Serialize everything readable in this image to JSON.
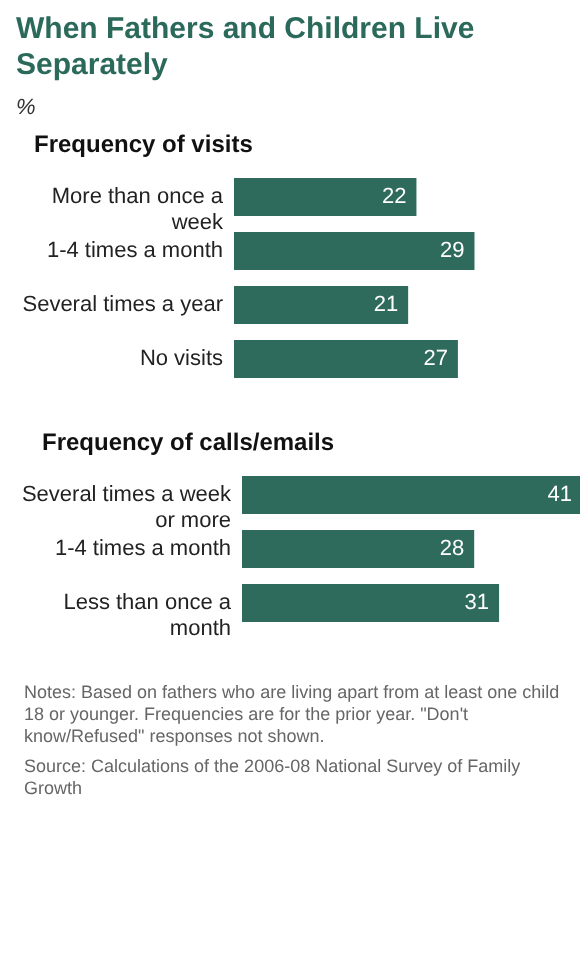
{
  "chart_data": [
    {
      "type": "other",
      "title": "When Fathers and Children Live Separately",
      "subtitle": "%"
    },
    {
      "type": "bar",
      "orientation": "horizontal",
      "title": "Frequency of visits",
      "categories": [
        "More than once a week",
        "1-4 times a month",
        "Several times a year",
        "No visits"
      ],
      "values": [
        22,
        29,
        21,
        27
      ],
      "color": "#2f6b5c",
      "data_labels": true
    },
    {
      "type": "bar",
      "orientation": "horizontal",
      "title": "Frequency of calls/emails",
      "categories": [
        "Several times a week or more",
        "1-4 times a month",
        "Less than once a month"
      ],
      "values": [
        41,
        28,
        31
      ],
      "color": "#2f6b5c",
      "data_labels": true,
      "annotations": [
        "Notes: Based on fathers who are living apart from at least one child 18 or younger. Frequencies are for the prior year. \"Don't know/Refused\" responses not shown.",
        "Source: Calculations of the 2006-08 National Survey of Family Growth"
      ]
    }
  ]
}
